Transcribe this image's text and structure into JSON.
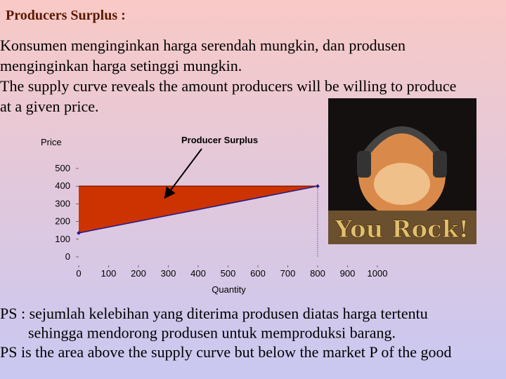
{
  "title": "Producers Surplus :",
  "paragraphs": [
    "Konsumen menginginkan harga serendah mungkin, dan produsen",
    "menginginkan harga setinggi mungkin.",
    "The supply curve reveals the amount producers will be willing to produce",
    "at a given price."
  ],
  "footer": [
    "PS : sejumlah kelebihan yang diterima produsen diatas harga tertentu",
    "sehingga mendorong produsen untuk memproduksi barang.",
    "PS is the area above the supply curve but below the market P of the good"
  ],
  "image": {
    "caption": "You Rock!"
  },
  "chart_data": {
    "type": "line",
    "annotation": "Producer Surplus",
    "y_label": "Price",
    "x_label": "Quantity",
    "xlim": [
      0,
      1000
    ],
    "ylim": [
      0,
      500
    ],
    "xticks": [
      0,
      100,
      200,
      300,
      400,
      500,
      600,
      700,
      800,
      900,
      1000
    ],
    "yticks": [
      0,
      100,
      200,
      300,
      400,
      500
    ],
    "area_color": "#cc3300",
    "series": [
      {
        "color": "#1a1a8c",
        "x": [
          0,
          800
        ],
        "values": [
          135,
          400
        ]
      },
      {
        "color": "#8b1a00",
        "x": [
          0,
          800
        ],
        "values": [
          400,
          400
        ]
      }
    ]
  }
}
